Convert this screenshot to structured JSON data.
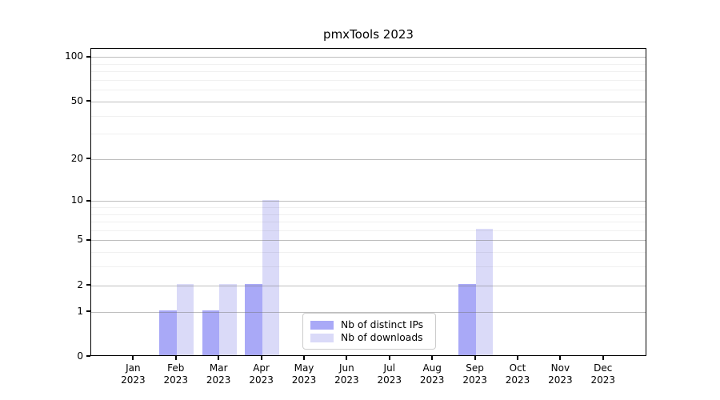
{
  "title": "pmxTools 2023",
  "chart_data": {
    "type": "bar",
    "title": "pmxTools 2023",
    "categories": [
      "Jan",
      "Feb",
      "Mar",
      "Apr",
      "May",
      "Jun",
      "Jul",
      "Aug",
      "Sep",
      "Oct",
      "Nov",
      "Dec"
    ],
    "category_year": "2023",
    "series": [
      {
        "name": "Nb of distinct IPs",
        "color": "#a9a9f7",
        "values": [
          0,
          1,
          1,
          2,
          0,
          0,
          0,
          0,
          2,
          0,
          0,
          0
        ]
      },
      {
        "name": "Nb of downloads",
        "color": "#dadaf8",
        "values": [
          0,
          2,
          2,
          10,
          0,
          0,
          0,
          0,
          6,
          0,
          0,
          0
        ]
      }
    ],
    "xlabel": "",
    "ylabel": "",
    "y_scale": "log1p",
    "y_major_ticks": [
      0,
      1,
      2,
      5,
      10,
      20,
      50,
      100
    ],
    "y_minor_ticks": [
      3,
      4,
      6,
      7,
      8,
      9,
      30,
      40,
      60,
      70,
      80,
      90
    ],
    "ylim": [
      0,
      114
    ],
    "grid": "horizontal",
    "legend_position": "lower center"
  },
  "colors": {
    "background": "#ffffff",
    "axis": "#000000",
    "major_grid": "#c2c2c2",
    "minor_grid": "#ececec",
    "legend_border": "#cccccc"
  }
}
